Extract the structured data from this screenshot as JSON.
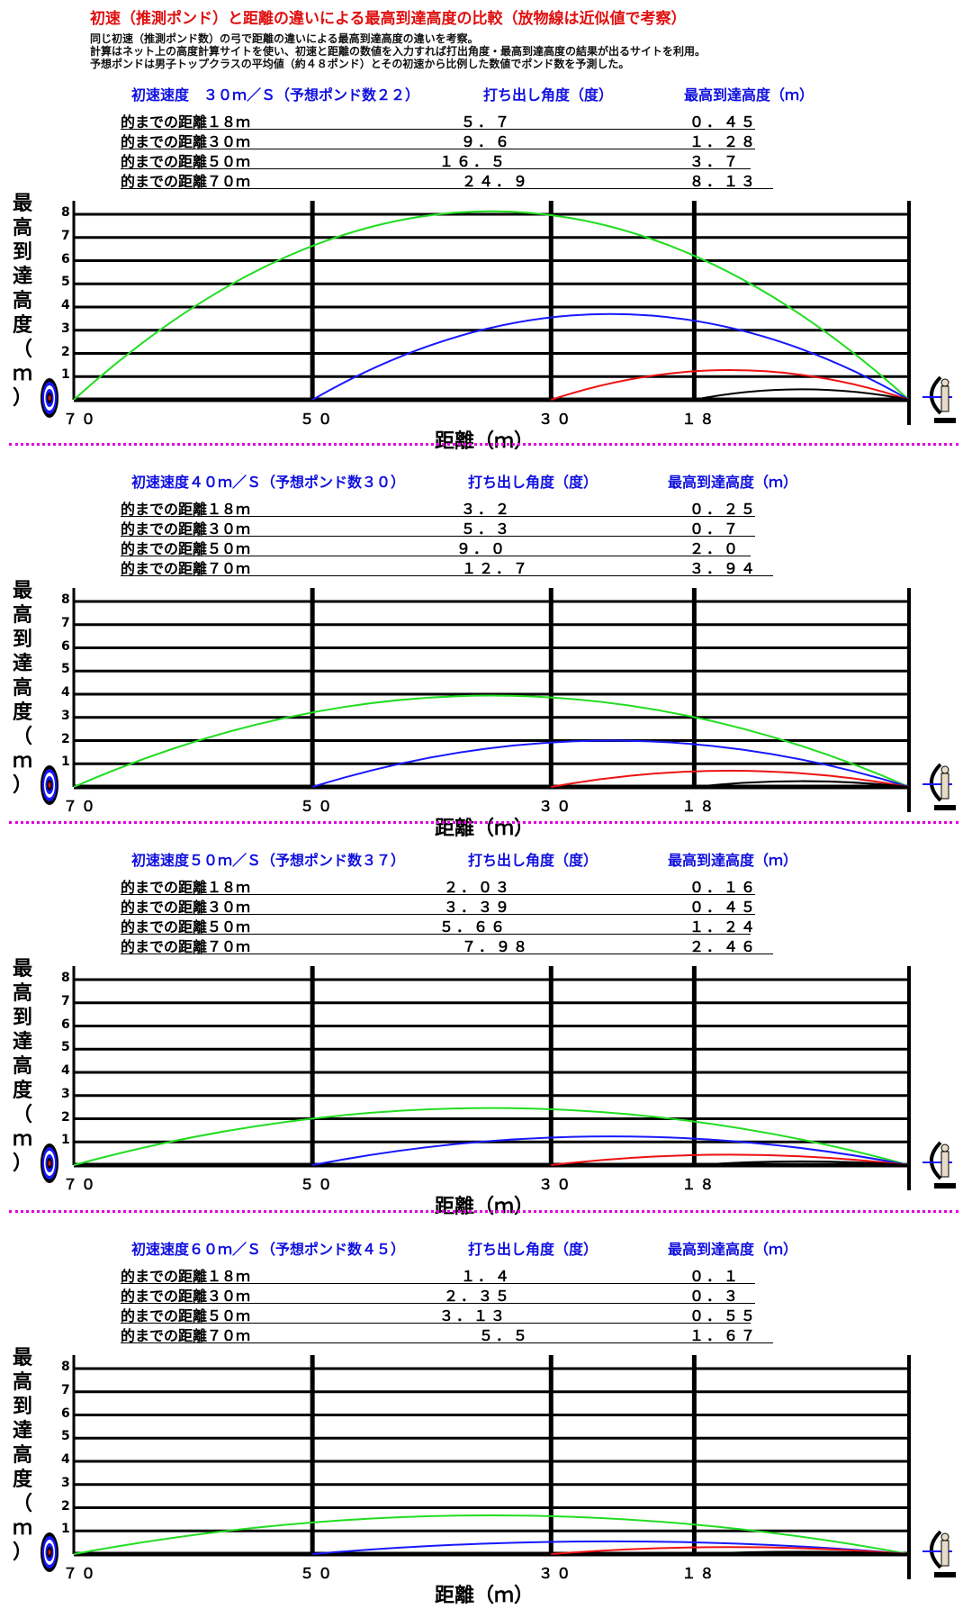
{
  "title": "初速（推測ポンド）と距離の違いによる最高到達高度の比較（放物線は近似値で考察）",
  "description": [
    "同じ初速（推測ポンド数）の弓で距離の違いによる最高到達高度の違いを考察。",
    "計算はネット上の高度計算サイトを使い、初速と距離の数値を入力すれば打出角度・最高到達高度の結果が出るサイトを利用。",
    "予想ポンドは男子トップクラスの平均値（約４８ポンド）とその初速から比例した数値でポンド数を予測した。"
  ],
  "colors": {
    "70": "#22dd22",
    "50": "#1818ff",
    "30": "#ee1111",
    "18": "#000000",
    "separator": "#e000e0"
  },
  "chart_data": [
    {
      "type": "line",
      "title": "初速速度　３０ｍ／Ｓ（予想ポンド数２２）",
      "col_angle": "打ち出し角度（度）",
      "col_height": "最高到達高度（ｍ）",
      "rows": [
        {
          "label": "的までの距離１８ｍ",
          "angle": "５．７",
          "height": "０．４５",
          "distance": 18,
          "max_height": 0.45
        },
        {
          "label": "的までの距離３０ｍ",
          "angle": "９．６",
          "height": "１．２８",
          "distance": 30,
          "max_height": 1.28
        },
        {
          "label": "的までの距離５０ｍ",
          "angle": "１６．５",
          "height": "３．７",
          "distance": 50,
          "max_height": 3.7
        },
        {
          "label": "的までの距離７０ｍ",
          "angle": "２４．９",
          "height": "８．１３",
          "distance": 70,
          "max_height": 8.13
        }
      ]
    },
    {
      "type": "line",
      "title": "初速速度４０ｍ／Ｓ（予想ポンド数３０）",
      "col_angle": "打ち出し角度（度）",
      "col_height": "最高到達高度（ｍ）",
      "rows": [
        {
          "label": "的までの距離１８ｍ",
          "angle": "３．２",
          "height": "０．２５",
          "distance": 18,
          "max_height": 0.25
        },
        {
          "label": "的までの距離３０ｍ",
          "angle": "５．３",
          "height": "０．７",
          "distance": 30,
          "max_height": 0.7
        },
        {
          "label": "的までの距離５０ｍ",
          "angle": "９．０",
          "height": "２．０",
          "distance": 50,
          "max_height": 2.0
        },
        {
          "label": "的までの距離７０ｍ",
          "angle": "１２．７",
          "height": "３．９４",
          "distance": 70,
          "max_height": 3.94
        }
      ]
    },
    {
      "type": "line",
      "title": "初速速度５０ｍ／Ｓ（予想ポンド数３７）",
      "col_angle": "打ち出し角度（度）",
      "col_height": "最高到達高度（ｍ）",
      "rows": [
        {
          "label": "的までの距離１８ｍ",
          "angle": "２．０３",
          "height": "０．１６",
          "distance": 18,
          "max_height": 0.16
        },
        {
          "label": "的までの距離３０ｍ",
          "angle": "３．３９",
          "height": "０．４５",
          "distance": 30,
          "max_height": 0.45
        },
        {
          "label": "的までの距離５０ｍ",
          "angle": "５．６６",
          "height": "１．２４",
          "distance": 50,
          "max_height": 1.24
        },
        {
          "label": "的までの距離７０ｍ",
          "angle": "７．９８",
          "height": "２．４６",
          "distance": 70,
          "max_height": 2.46
        }
      ]
    },
    {
      "type": "line",
      "title": "初速速度６０ｍ／Ｓ（予想ポンド数４５）",
      "col_angle": "打ち出し角度（度）",
      "col_height": "最高到達高度（ｍ）",
      "rows": [
        {
          "label": "的までの距離１８ｍ",
          "angle": "１．４",
          "height": "０．１",
          "distance": 18,
          "max_height": 0.1
        },
        {
          "label": "的までの距離３０ｍ",
          "angle": "２．３５",
          "height": "０．３",
          "distance": 30,
          "max_height": 0.3
        },
        {
          "label": "的までの距離５０ｍ",
          "angle": "３．１３",
          "height": "０．５５",
          "distance": 50,
          "max_height": 0.55
        },
        {
          "label": "的までの距離７０ｍ",
          "angle": "５．５",
          "height": "１．６７",
          "distance": 70,
          "max_height": 1.67
        }
      ]
    }
  ],
  "axes": {
    "ylabel": "最高到達高度（ｍ）",
    "xlabel": "距離（ｍ）",
    "yticks": [
      "1",
      "2",
      "3",
      "4",
      "5",
      "6",
      "7",
      "8"
    ],
    "xticks": [
      {
        "value": 70,
        "label": "７０"
      },
      {
        "value": 50,
        "label": "５０"
      },
      {
        "value": 30,
        "label": "３０"
      },
      {
        "value": 18,
        "label": "１８"
      }
    ],
    "xlim": [
      70,
      0
    ],
    "ylim": [
      0,
      8
    ]
  }
}
